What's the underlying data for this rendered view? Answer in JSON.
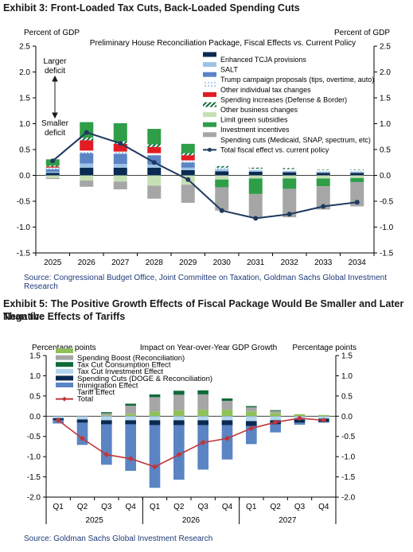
{
  "exhibit1": {
    "title": "Exhibit 3: Front-Loaded Tax Cuts, Back-Loaded Spending Cuts",
    "source": "Source: Congressional Budget Office, Joint Committee on Taxation, Goldman Sachs Global Investment Research",
    "left_axis_label": "Percent of GDP",
    "right_axis_label": "Percent of GDP",
    "annotation_top": [
      "Larger",
      "deficit"
    ],
    "annotation_bottom": [
      "Smaller",
      "deficit"
    ]
  },
  "exhibit2": {
    "title_line1": "Exhibit 5: The Positive Growth Effects of Fiscal Package Would Be Smaller and Later Than the",
    "title_line2": "Negative Effects of Tariffs",
    "source": "Source: Goldman Sachs Global Investment Research",
    "left_axis_label": "Percentage points",
    "right_axis_label": "Percentage points"
  },
  "chart_data": [
    {
      "type": "bar",
      "title": "Preliminary House Reconciliation Package, Fiscal Effects vs. Current Policy",
      "ylabel": "Percent of GDP",
      "ylim": [
        -1.5,
        2.5
      ],
      "yticks": [
        -1.5,
        -1.0,
        -0.5,
        0.0,
        0.5,
        1.0,
        1.5,
        2.0,
        2.5
      ],
      "categories": [
        "2025",
        "2026",
        "2027",
        "2028",
        "2029",
        "2030",
        "2031",
        "2032",
        "2033",
        "2034"
      ],
      "legend_position": "top-right",
      "series": [
        {
          "name": "Enhanced TCJA provisions",
          "color": "#0b2a52",
          "values": [
            0.05,
            0.15,
            0.15,
            0.15,
            0.1,
            0.08,
            0.07,
            0.06,
            0.05,
            0.05
          ]
        },
        {
          "name": "SALT",
          "color": "#9dc3e6",
          "values": [
            0.02,
            0.08,
            0.07,
            0.06,
            0.05,
            0.04,
            0.03,
            0.03,
            0.02,
            0.02
          ]
        },
        {
          "name": "Trump campaign proposals (tips, overtime, auto)",
          "color": "#5b84c4",
          "values": [
            0.05,
            0.2,
            0.2,
            0.18,
            0.1,
            0.0,
            0.0,
            0.0,
            0.0,
            0.0
          ]
        },
        {
          "name": "Other individual tax changes",
          "color": "#cfe3f4",
          "pattern": "dots",
          "values": [
            0.03,
            0.05,
            0.04,
            0.04,
            0.04,
            0.03,
            0.03,
            0.03,
            0.03,
            0.03
          ]
        },
        {
          "name": "Spending increases (Defense & Border)",
          "color": "#e31b23",
          "values": [
            0.02,
            0.2,
            0.15,
            0.12,
            0.1,
            0.0,
            0.0,
            0.0,
            0.0,
            0.0
          ]
        },
        {
          "name": "Other business changes",
          "color": "#0e6b3a",
          "pattern": "stripes",
          "values": [
            0.02,
            0.05,
            0.05,
            0.05,
            0.04,
            0.03,
            0.02,
            0.02,
            0.01,
            0.01
          ]
        },
        {
          "name": "Limit green subsidies",
          "color": "#c6e0b4",
          "values": [
            -0.05,
            -0.1,
            -0.12,
            -0.2,
            -0.18,
            -0.08,
            -0.06,
            -0.06,
            -0.06,
            -0.05
          ]
        },
        {
          "name": "Investment incentives",
          "color": "#2e9e48",
          "values": [
            0.12,
            0.3,
            0.35,
            0.3,
            0.18,
            -0.15,
            -0.3,
            -0.2,
            -0.15,
            -0.08
          ]
        },
        {
          "name": "Spending cuts (Medicaid, SNAP, spectrum, etc)",
          "color": "#a6a6a6",
          "values": [
            -0.02,
            -0.12,
            -0.15,
            -0.25,
            -0.35,
            -0.45,
            -0.45,
            -0.55,
            -0.45,
            -0.47
          ]
        }
      ],
      "line_series": {
        "name": "Total fiscal effect vs. current policy",
        "color": "#1f3a5f",
        "values": [
          0.28,
          0.83,
          0.62,
          0.25,
          -0.08,
          -0.68,
          -0.83,
          -0.75,
          -0.6,
          -0.52
        ]
      }
    },
    {
      "type": "bar",
      "title": "Impact on Year-over-Year GDP Growth",
      "ylabel": "Percentage points",
      "ylim": [
        -2.0,
        1.5
      ],
      "yticks": [
        -2.0,
        -1.5,
        -1.0,
        -0.5,
        0.0,
        0.5,
        1.0,
        1.5
      ],
      "categories": [
        "Q1",
        "Q2",
        "Q3",
        "Q4",
        "Q1",
        "Q2",
        "Q3",
        "Q4",
        "Q1",
        "Q2",
        "Q3",
        "Q4"
      ],
      "year_labels": [
        "2025",
        "2026",
        "2027"
      ],
      "legend_position": "top-left",
      "series": [
        {
          "name": "Spending Boost (Reconciliation)",
          "color": "#8fc059",
          "values": [
            0.0,
            0.0,
            0.02,
            0.06,
            0.12,
            0.15,
            0.16,
            0.16,
            0.12,
            0.08,
            0.05,
            0.03
          ]
        },
        {
          "name": "Tax Cut Consumption Effect",
          "color": "#a6a6a6",
          "values": [
            0.0,
            0.0,
            0.05,
            0.2,
            0.35,
            0.38,
            0.38,
            0.22,
            0.1,
            0.05,
            0.0,
            0.0
          ]
        },
        {
          "name": "Tax Cut Investment Effect",
          "color": "#0e6b3a",
          "values": [
            0.0,
            0.0,
            0.03,
            0.05,
            0.07,
            0.1,
            0.1,
            0.06,
            0.03,
            0.02,
            0.0,
            0.0
          ]
        },
        {
          "name": "Spending Cuts (DOGE & Reconciliation)",
          "color": "#b4d5ee",
          "values": [
            -0.05,
            -0.08,
            -0.1,
            -0.1,
            -0.1,
            -0.1,
            -0.1,
            -0.1,
            -0.12,
            -0.1,
            -0.08,
            -0.06
          ]
        },
        {
          "name": "Immigration Effect",
          "color": "#0b2a52",
          "values": [
            -0.05,
            -0.08,
            -0.1,
            -0.1,
            -0.12,
            -0.12,
            -0.12,
            -0.12,
            -0.12,
            -0.1,
            -0.08,
            -0.08
          ]
        },
        {
          "name": "Tariff Effect",
          "color": "#5b84c4",
          "values": [
            -0.08,
            -0.55,
            -1.0,
            -1.15,
            -1.55,
            -1.35,
            -1.1,
            -0.85,
            -0.45,
            -0.2,
            -0.05,
            -0.02
          ]
        }
      ],
      "line_series": {
        "name": "Total",
        "color": "#c0363b",
        "values": [
          -0.1,
          -0.55,
          -0.95,
          -1.05,
          -1.25,
          -0.95,
          -0.65,
          -0.55,
          -0.3,
          -0.15,
          -0.05,
          -0.1
        ]
      }
    }
  ]
}
